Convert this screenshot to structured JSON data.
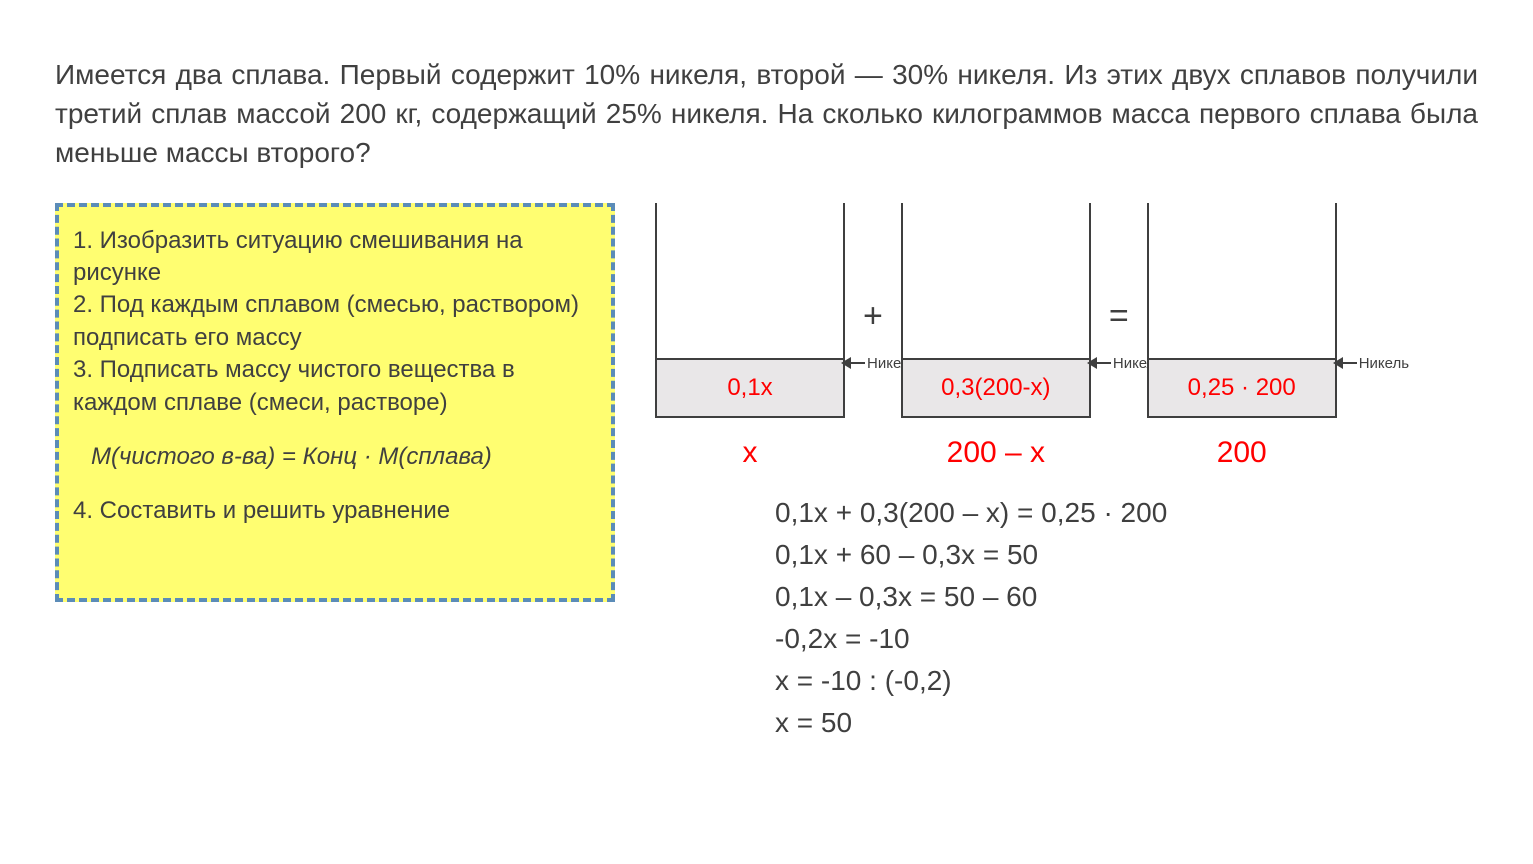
{
  "problem_text": "Имеется два сплава. Первый содержит 10% никеля, второй — 30% никеля. Из этих двух сплавов получили третий сплав массой 200 кг, содержащий 25% никеля. На сколько килограммов масса первого сплава была меньше массы второго?",
  "steps": {
    "s1": "1. Изобразить ситуацию смешивания на рисунке",
    "s2": "2. Под каждым сплавом (смесью, раствором) подписать его массу",
    "s3": "3. Подписать массу чистого вещества в каждом сплаве (смеси, растворе)",
    "formula": "M(чистого в-ва) = Конц · M(сплава)",
    "s4": "4. Составить и решить уравнение"
  },
  "diagram": {
    "beaker1": {
      "fill_label": "0,1x",
      "mass_label": "x",
      "tag": "Никель"
    },
    "op1": "+",
    "beaker2": {
      "fill_label": "0,3(200-x)",
      "mass_label": "200 – x",
      "tag": "Никель"
    },
    "op2": "=",
    "beaker3": {
      "fill_label": "0,25 · 200",
      "mass_label": "200",
      "tag": "Никель"
    },
    "fill_color": "#e9e7e8",
    "label_color": "#ff0000",
    "border_color": "#3f3f3f"
  },
  "equations": {
    "l1": "0,1x + 0,3(200 – x) = 0,25 · 200",
    "l2": "0,1x + 60 – 0,3x = 50",
    "l3": "0,1x – 0,3x = 50 – 60",
    "l4": "-0,2x = -10",
    "l5": "x = -10 : (-0,2)",
    "l6": "x = 50"
  },
  "steps_box_style": {
    "background": "#fffe71",
    "border_color": "#5b8cb8",
    "border_style": "dashed"
  }
}
